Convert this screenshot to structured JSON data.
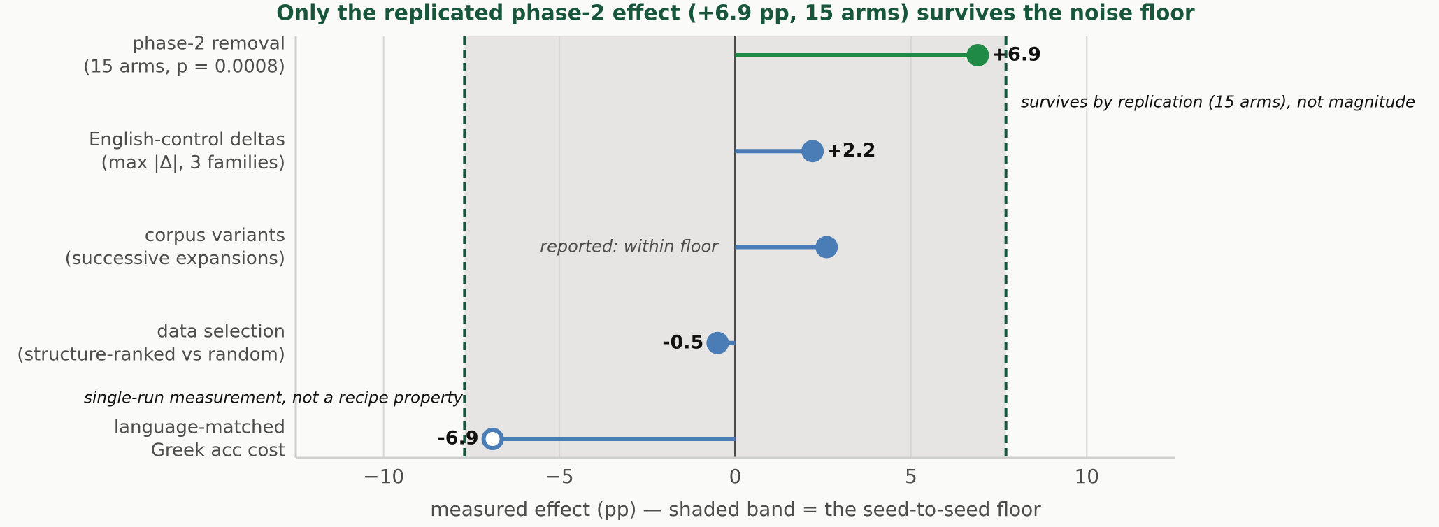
{
  "chart_data": {
    "type": "lollipop",
    "title": "Only the replicated phase-2 effect (+6.9 pp, 15 arms) survives the noise floor",
    "xlabel": "measured effect (pp)   —   shaded band = the seed-to-seed floor",
    "categories": [
      [
        "phase-2 removal",
        "(15 arms, p = 0.0008)"
      ],
      [
        "English-control deltas",
        "(max |Δ|, 3 families)"
      ],
      [
        "corpus variants",
        "(successive expansions)"
      ],
      [
        "data selection",
        "(structure-ranked vs random)"
      ],
      [
        "language-matched",
        "Greek acc cost"
      ]
    ],
    "values": [
      6.9,
      2.2,
      2.6,
      -0.5,
      -6.9
    ],
    "value_labels": [
      "+6.9",
      "+2.2",
      null,
      "-0.5",
      "-6.9"
    ],
    "colors": [
      "#1e8a45",
      "#4a7db5",
      "#4a7db5",
      "#4a7db5",
      "#4a7db5"
    ],
    "hollow": [
      false,
      false,
      false,
      false,
      true
    ],
    "floor_band": [
      -7.7,
      7.7
    ],
    "xlim": [
      -12.5,
      12.5
    ],
    "xticks": [
      {
        "value": -10,
        "label": "−10"
      },
      {
        "value": -5,
        "label": "−5"
      },
      0,
      5,
      10
    ],
    "grid": true,
    "annotations": [
      {
        "text": "survives by replication (15 arms), not magnitude",
        "row": 0
      },
      {
        "text": "reported: within floor",
        "row": 2
      },
      {
        "text": "single-run measurement, not a recipe property",
        "row": 4
      }
    ]
  }
}
